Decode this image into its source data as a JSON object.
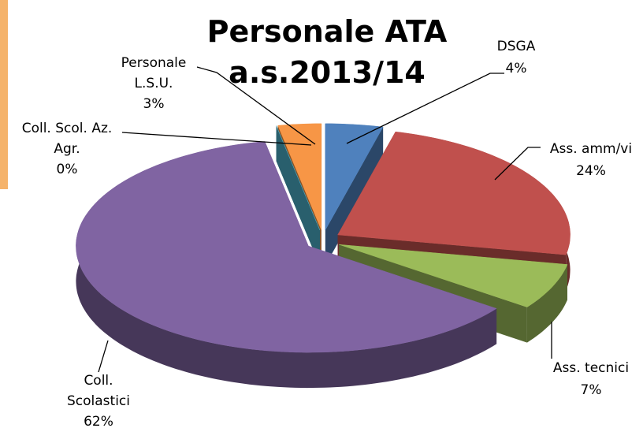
{
  "chart_data": {
    "type": "pie",
    "title": "Personale ATA a.s.2013/14",
    "categories": [
      "DSGA",
      "Ass. amm/vi",
      "Ass. tecnici",
      "Coll. Scolastici",
      "Coll. Scol. Az. Agr.",
      "Personale L.S.U."
    ],
    "values": [
      4,
      24,
      7,
      62,
      0,
      3
    ],
    "value_labels": [
      "4%",
      "24%",
      "7%",
      "62%",
      "0%",
      "3%"
    ],
    "colors": [
      "#4f81bd",
      "#c0504d",
      "#9bbb59",
      "#8064a2",
      "#4bacc6",
      "#f79646"
    ]
  }
}
